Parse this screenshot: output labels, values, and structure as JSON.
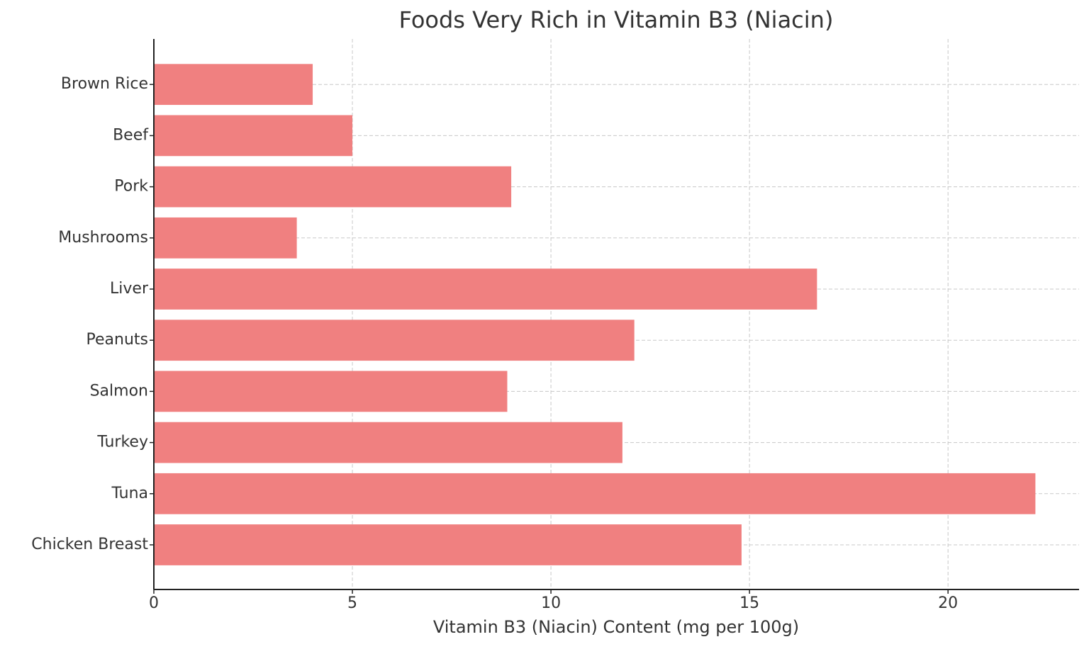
{
  "chart_data": {
    "type": "barh",
    "title": "Foods Very Rich in Vitamin B3 (Niacin)",
    "x_label": "Vitamin B3 (Niacin) Content (mg per 100g)",
    "categories": [
      "Chicken Breast",
      "Tuna",
      "Turkey",
      "Salmon",
      "Peanuts",
      "Liver",
      "Mushrooms",
      "Pork",
      "Beef",
      "Brown Rice"
    ],
    "values": [
      14.8,
      22.2,
      11.8,
      8.9,
      12.1,
      16.7,
      3.6,
      9.0,
      5.0,
      4.0
    ],
    "color": "#f08080",
    "xlim": [
      0,
      23.3
    ],
    "xticks": [
      0,
      5,
      10,
      15,
      20
    ],
    "grid": true
  }
}
